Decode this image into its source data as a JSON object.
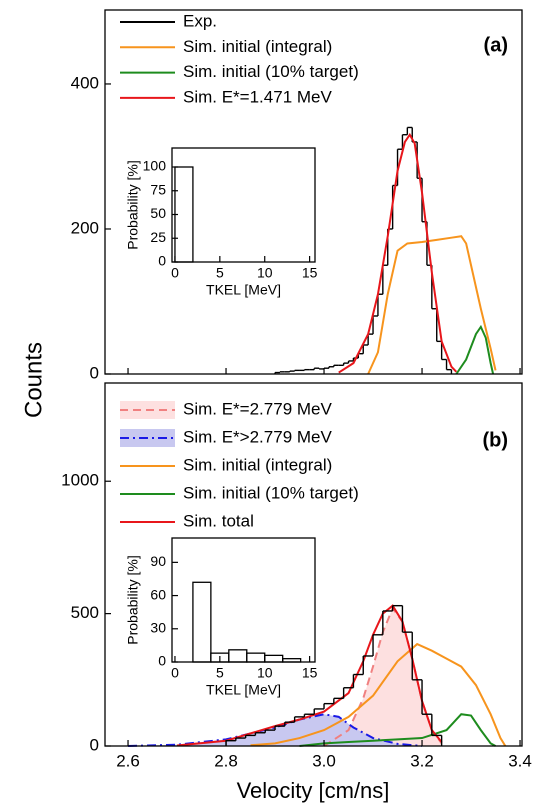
{
  "chart_data": [
    {
      "type": "line",
      "panel_label": "(a)",
      "ylabel": "Counts",
      "legend": "upper left",
      "xlim": [
        2.553,
        3.404
      ],
      "ylim": [
        0,
        502
      ],
      "yticks": [
        0,
        200,
        400
      ],
      "xticks": [
        2.6,
        2.8,
        3,
        3.2,
        3.4
      ],
      "xtick_labels": false,
      "series": [
        {
          "name": "Exp.",
          "color": "#000000",
          "style": "step",
          "bins": [
            2.9,
            2.91,
            2.92,
            2.93,
            2.94,
            2.95,
            2.96,
            2.97,
            2.98,
            2.99,
            3.0,
            3.01,
            3.02,
            3.03,
            3.04,
            3.05,
            3.06,
            3.07,
            3.08,
            3.09,
            3.1,
            3.11,
            3.12,
            3.13,
            3.14,
            3.15,
            3.16,
            3.17,
            3.18,
            3.19,
            3.2,
            3.21,
            3.22,
            3.23,
            3.24,
            3.25,
            3.26
          ],
          "values": [
            2,
            3,
            3,
            4,
            5,
            5,
            6,
            6,
            8,
            7,
            8,
            10,
            12,
            12,
            15,
            18,
            22,
            28,
            40,
            55,
            80,
            110,
            150,
            200,
            260,
            310,
            330,
            340,
            320,
            270,
            210,
            150,
            90,
            45,
            20,
            6
          ]
        },
        {
          "name": "Sim. initial (integral)",
          "color": "#f7941d",
          "style": "solid",
          "x": [
            3.09,
            3.11,
            3.13,
            3.15,
            3.17,
            3.2,
            3.23,
            3.26,
            3.28,
            3.29,
            3.3,
            3.32,
            3.34,
            3.35
          ],
          "values": [
            0,
            30,
            110,
            170,
            180,
            182,
            185,
            188,
            190,
            180,
            150,
            90,
            35,
            5
          ]
        },
        {
          "name": "Sim. initial (10% target)",
          "color": "#1e8c1e",
          "style": "solid",
          "x": [
            3.27,
            3.29,
            3.31,
            3.32,
            3.33,
            3.34,
            3.345
          ],
          "values": [
            0,
            20,
            55,
            65,
            50,
            15,
            0
          ]
        },
        {
          "name": "Sim. E*=1.471 MeV",
          "color": "#e8161b",
          "style": "solid",
          "x": [
            3.03,
            3.06,
            3.09,
            3.11,
            3.13,
            3.15,
            3.165,
            3.175,
            3.185,
            3.2,
            3.22,
            3.24,
            3.26,
            3.27
          ],
          "values": [
            2,
            15,
            55,
            110,
            190,
            280,
            320,
            330,
            318,
            250,
            140,
            45,
            10,
            3
          ]
        }
      ]
    },
    {
      "type": "histogram",
      "ylabel": "Probability [%]",
      "xlabel": "TKEL [MeV]",
      "xlim": [
        -0.33,
        15.6
      ],
      "ylim": [
        0,
        120
      ],
      "xticks": [
        0,
        5,
        10,
        15
      ],
      "yticks": [
        0,
        25,
        50,
        75,
        100
      ],
      "bins": [
        0,
        2
      ],
      "values": [
        100
      ]
    },
    {
      "type": "line",
      "panel_label": "(b)",
      "xlabel": "Velocity [cm/ns]",
      "legend": "upper left",
      "xlim": [
        2.553,
        3.404
      ],
      "ylim": [
        0,
        1371
      ],
      "yticks": [
        0,
        500,
        1000
      ],
      "xticks": [
        2.6,
        2.8,
        {
          "value": 3,
          "label": "3.0"
        },
        3.2,
        3.4
      ],
      "xtick_labels": true,
      "series": [
        {
          "name": "Sim. E*=2.779 MeV",
          "color": "#f08080",
          "fill_color": "#fde0e0",
          "style": "dashed",
          "x": [
            3.0,
            3.05,
            3.08,
            3.1,
            3.12,
            3.14,
            3.16,
            3.18,
            3.2,
            3.22,
            3.24
          ],
          "values": [
            0,
            60,
            180,
            300,
            430,
            520,
            470,
            330,
            170,
            60,
            10
          ]
        },
        {
          "name": "Sim. E*>2.779 MeV",
          "color": "#1a1ae6",
          "fill_color": "#c8c8f0",
          "style": "dashdot",
          "x": [
            2.6,
            2.7,
            2.8,
            2.9,
            2.95,
            3.0,
            3.03,
            3.06,
            3.1,
            3.15,
            3.2
          ],
          "values": [
            0,
            5,
            25,
            70,
            100,
            120,
            110,
            70,
            30,
            8,
            0
          ]
        },
        {
          "name": "Sim. initial (integral)",
          "color": "#f7941d",
          "style": "solid",
          "x": [
            2.85,
            2.9,
            2.95,
            3.0,
            3.05,
            3.1,
            3.15,
            3.19,
            3.22,
            3.25,
            3.28,
            3.31,
            3.34,
            3.36,
            3.37
          ],
          "values": [
            3,
            10,
            30,
            60,
            110,
            190,
            320,
            385,
            360,
            330,
            300,
            230,
            120,
            30,
            0
          ]
        },
        {
          "name": "Sim. initial (10% target)",
          "color": "#1e8c1e",
          "style": "solid",
          "x": [
            2.95,
            3.0,
            3.05,
            3.1,
            3.15,
            3.2,
            3.25,
            3.28,
            3.3,
            3.32,
            3.34,
            3.35
          ],
          "values": [
            0,
            10,
            15,
            20,
            25,
            30,
            60,
            120,
            115,
            60,
            10,
            0
          ]
        },
        {
          "name": "Sim. total",
          "color": "#e8161b",
          "style": "solid",
          "x": [
            2.7,
            2.8,
            2.9,
            2.95,
            3.0,
            3.05,
            3.08,
            3.1,
            3.12,
            3.14,
            3.16,
            3.18,
            3.2,
            3.22,
            3.24
          ],
          "values": [
            2,
            20,
            75,
            100,
            130,
            200,
            320,
            420,
            500,
            530,
            470,
            330,
            170,
            60,
            15
          ]
        },
        {
          "name": null,
          "color": "#000000",
          "style": "step",
          "bins": [
            2.8,
            2.82,
            2.84,
            2.86,
            2.88,
            2.9,
            2.92,
            2.94,
            2.96,
            2.98,
            3.0,
            3.02,
            3.04,
            3.06,
            3.08,
            3.1,
            3.12,
            3.14,
            3.16,
            3.18,
            3.2,
            3.22,
            3.24
          ],
          "values": [
            20,
            30,
            40,
            50,
            60,
            75,
            90,
            110,
            120,
            140,
            160,
            180,
            220,
            270,
            340,
            420,
            510,
            530,
            430,
            250,
            120,
            40
          ]
        }
      ]
    },
    {
      "type": "histogram",
      "ylabel": "Probability [%]",
      "xlabel": "TKEL [MeV]",
      "xlim": [
        -0.33,
        15.6
      ],
      "ylim": [
        0,
        112
      ],
      "xticks": [
        0,
        5,
        10,
        15
      ],
      "yticks": [
        0,
        30,
        60,
        90
      ],
      "bins": [
        2,
        4,
        6,
        8,
        10,
        12,
        14
      ],
      "values": [
        72,
        8,
        11,
        8,
        6,
        3
      ]
    }
  ]
}
